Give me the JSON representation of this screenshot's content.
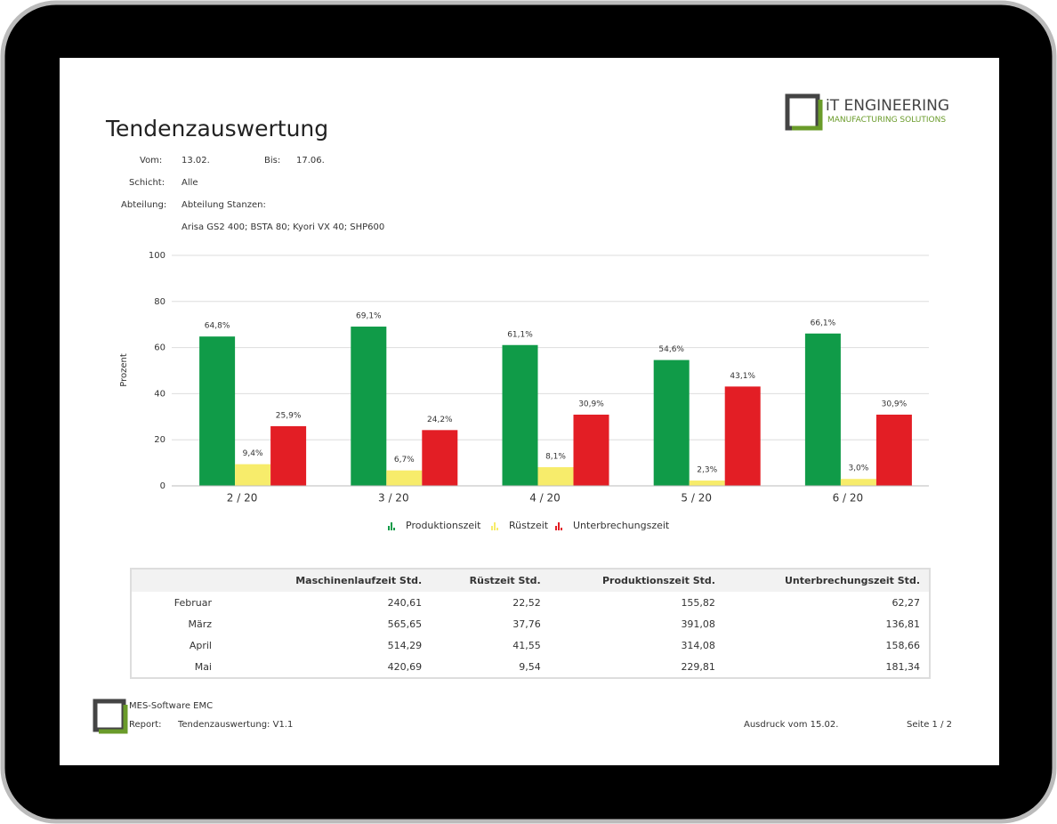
{
  "header": {
    "title": "Tendenzauswertung",
    "logo_title": "iT ENGINEERING",
    "logo_subtitle": "MANUFACTURING SOLUTIONS"
  },
  "meta": {
    "from_label": "Vom:",
    "from_value": "13.02.",
    "to_label": "Bis:",
    "to_value": "17.06.",
    "shift_label": "Schicht:",
    "shift_value": "Alle",
    "department_label": "Abteilung:",
    "department_value": "Abteilung Stanzen:",
    "machines": "Arisa GS2 400; BSTA 80; Kyori VX 40; SHP600"
  },
  "chart_data": {
    "type": "bar",
    "ylabel": "Prozent",
    "categories": [
      "2 / 20",
      "3 / 20",
      "4 / 20",
      "5 / 20",
      "6 / 20"
    ],
    "series": [
      {
        "name": "Produktionszeit",
        "color": "#109b48",
        "values": [
          64.8,
          69.1,
          61.1,
          54.6,
          66.1
        ],
        "value_labels": [
          "64,8%",
          "69,1%",
          "61,1%",
          "54,6%",
          "66,1%"
        ]
      },
      {
        "name": "Rüstzeit",
        "color": "#f7ec6b",
        "values": [
          9.4,
          6.7,
          8.1,
          2.3,
          3.0
        ],
        "value_labels": [
          "9,4%",
          "6,7%",
          "8,1%",
          "2,3%",
          "3,0%"
        ]
      },
      {
        "name": "Unterbrechungszeit",
        "color": "#e31e25",
        "values": [
          25.9,
          24.2,
          30.9,
          43.1,
          30.9
        ],
        "value_labels": [
          "25,9%",
          "24,2%",
          "30,9%",
          "43,1%",
          "30,9%"
        ]
      }
    ],
    "ylim": [
      0,
      100
    ],
    "yticks": [
      0,
      20,
      40,
      60,
      80,
      100
    ],
    "grid": true,
    "legend": "bottom"
  },
  "table": {
    "columns": [
      "Maschinenlaufzeit Std.",
      "Rüstzeit Std.",
      "Produktionszeit Std.",
      "Unterbrechungszeit Std."
    ],
    "rows": [
      [
        "Februar",
        "240,61",
        "22,52",
        "155,82",
        "62,27"
      ],
      [
        "März",
        "565,65",
        "37,76",
        "391,08",
        "136,81"
      ],
      [
        "April",
        "514,29",
        "41,55",
        "314,08",
        "158,66"
      ],
      [
        "Mai",
        "420,69",
        "9,54",
        "229,81",
        "181,34"
      ]
    ]
  },
  "footer": {
    "software": "MES-Software EMC",
    "report_label": "Report:",
    "report_value": "Tendenzauswertung: V1.1",
    "printed": "Ausdruck vom 15.02.",
    "page": "Seite 1 / 2"
  }
}
